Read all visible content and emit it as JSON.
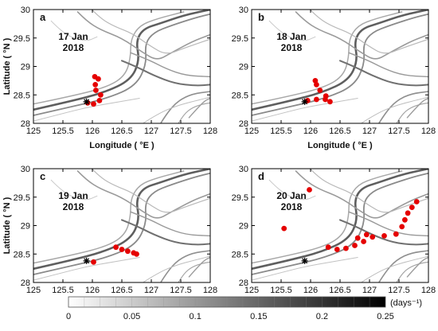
{
  "figure": {
    "panels": [
      {
        "letter": "a",
        "date": "17 Jan",
        "year": "2018",
        "x_label": "Longitude ( °E )",
        "y_label": "Latitude ( °N )"
      },
      {
        "letter": "b",
        "date": "18 Jan",
        "year": "2018",
        "x_label": "Longitude ( °E )",
        "y_label": ""
      },
      {
        "letter": "c",
        "date": "19 Jan",
        "year": "2018",
        "x_label": "",
        "y_label": "Latitude ( °N )"
      },
      {
        "letter": "d",
        "date": "20 Jan",
        "year": "2018",
        "x_label": "",
        "y_label": ""
      }
    ],
    "colorbar": {
      "unit_label": "(days⁻¹)",
      "tick_labels": [
        "0",
        "0.05",
        "0.1",
        "0.15",
        "0.2",
        "0.25"
      ],
      "range": [
        0,
        0.25
      ],
      "colormap": "white-to-black"
    },
    "colors": {
      "spill": "#e50000",
      "marker": "#000000",
      "ridges": "#6f6f6f"
    }
  },
  "chart_data": [
    {
      "type": "map",
      "panel": "a",
      "xlim": [
        125,
        128
      ],
      "ylim": [
        28,
        30
      ],
      "xticks": [
        "125",
        "125.5",
        "126",
        "126.5",
        "127",
        "127.5",
        "128"
      ],
      "yticks": [
        "28",
        "28.5",
        "29",
        "29.5",
        "30"
      ],
      "marker": {
        "lon": 125.9,
        "lat": 28.38,
        "symbol": "asterisk"
      },
      "spill": [
        [
          125.92,
          28.36
        ],
        [
          126.02,
          28.34
        ],
        [
          126.12,
          28.4
        ],
        [
          126.14,
          28.5
        ],
        [
          126.06,
          28.58
        ],
        [
          126.05,
          28.68
        ],
        [
          126.1,
          28.78
        ],
        [
          126.04,
          28.82
        ]
      ]
    },
    {
      "type": "map",
      "panel": "b",
      "xlim": [
        125,
        128
      ],
      "ylim": [
        28,
        30
      ],
      "xticks": [
        "125",
        "125.5",
        "126",
        "126.5",
        "127",
        "127.5",
        "128"
      ],
      "yticks": [
        "28",
        "28.5",
        "29",
        "29.5",
        "30"
      ],
      "marker": {
        "lon": 125.9,
        "lat": 28.38,
        "symbol": "asterisk"
      },
      "spill": [
        [
          125.95,
          28.4
        ],
        [
          126.1,
          28.42
        ],
        [
          126.25,
          28.42
        ],
        [
          126.33,
          28.38
        ],
        [
          126.26,
          28.48
        ],
        [
          126.16,
          28.58
        ],
        [
          126.1,
          28.68
        ],
        [
          126.08,
          28.75
        ]
      ]
    },
    {
      "type": "map",
      "panel": "c",
      "xlim": [
        125,
        128
      ],
      "ylim": [
        28,
        30
      ],
      "xticks": [
        "125",
        "125.5",
        "126",
        "126.5",
        "127",
        "127.5",
        "128"
      ],
      "yticks": [
        "28",
        "28.5",
        "29",
        "29.5",
        "30"
      ],
      "marker": {
        "lon": 125.9,
        "lat": 28.38,
        "symbol": "asterisk"
      },
      "spill": [
        [
          126.4,
          28.62
        ],
        [
          126.5,
          28.58
        ],
        [
          126.6,
          28.55
        ],
        [
          126.7,
          28.52
        ],
        [
          126.75,
          28.5
        ],
        [
          126.02,
          28.36
        ]
      ]
    },
    {
      "type": "map",
      "panel": "d",
      "xlim": [
        125,
        128
      ],
      "ylim": [
        28,
        30
      ],
      "xticks": [
        "125",
        "125.5",
        "126",
        "126.5",
        "127",
        "127.5",
        "128"
      ],
      "yticks": [
        "28",
        "28.5",
        "29",
        "29.5",
        "30"
      ],
      "marker": {
        "lon": 125.9,
        "lat": 28.38,
        "symbol": "asterisk"
      },
      "spill": [
        [
          126.3,
          28.62
        ],
        [
          126.45,
          28.58
        ],
        [
          126.6,
          28.6
        ],
        [
          126.75,
          28.65
        ],
        [
          126.9,
          28.72
        ],
        [
          127.05,
          28.8
        ],
        [
          127.25,
          28.82
        ],
        [
          127.45,
          28.85
        ],
        [
          127.55,
          28.98
        ],
        [
          127.6,
          29.1
        ],
        [
          127.65,
          29.22
        ],
        [
          127.72,
          29.32
        ],
        [
          127.8,
          29.42
        ],
        [
          126.95,
          28.84
        ],
        [
          126.8,
          28.78
        ],
        [
          125.98,
          29.63
        ],
        [
          125.55,
          28.95
        ]
      ]
    }
  ]
}
